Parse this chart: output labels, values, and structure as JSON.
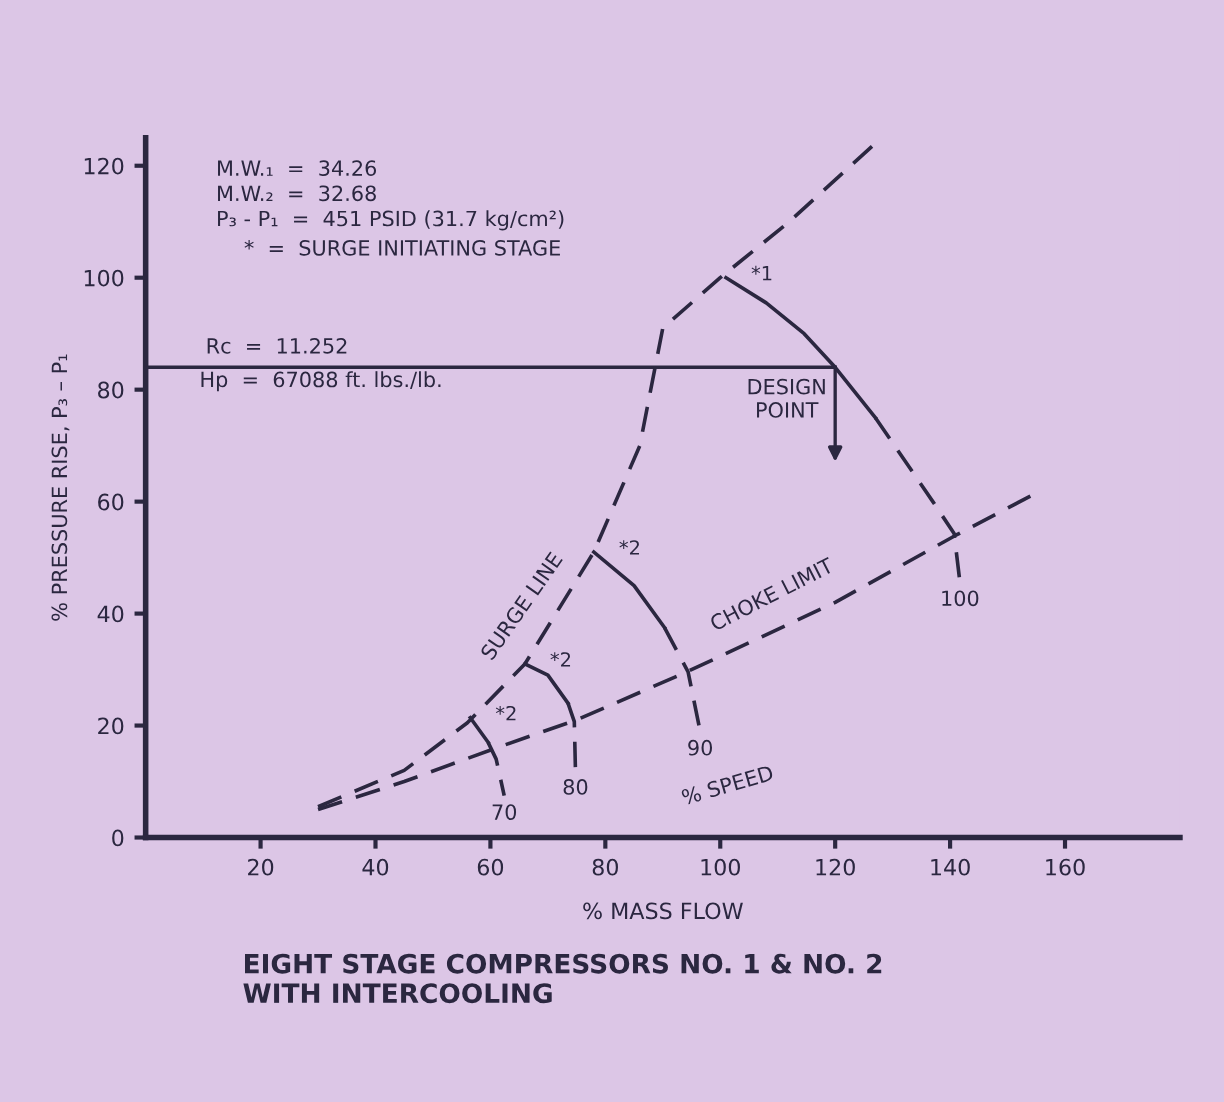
{
  "chart_data": {
    "type": "line",
    "title": "EIGHT STAGE COMPRESSORS NO. 1 & NO. 2\nWITH INTERCOOLING",
    "xlabel": "% MASS FLOW",
    "ylabel": "% PRESSURE RISE, P₃ – P₁",
    "xlim": [
      0,
      180
    ],
    "ylim": [
      0,
      125
    ],
    "xticks": [
      20,
      40,
      60,
      80,
      100,
      120,
      140,
      160
    ],
    "yticks": [
      0,
      20,
      40,
      60,
      80,
      100,
      120
    ],
    "grid": false,
    "marker": "none",
    "series": [
      {
        "color": "#2b2740",
        "line_style": "dashed",
        "x": [
          30,
          45,
          56,
          66,
          78,
          86,
          90,
          100,
          112,
          127
        ],
        "values": [
          5.5,
          12,
          20.5,
          31,
          51,
          70,
          91,
          100,
          110,
          124
        ]
      },
      {
        "color": "#2b2740",
        "line_style": "dashed",
        "x": [
          30,
          45,
          61,
          75,
          94,
          120,
          141,
          154
        ],
        "values": [
          5,
          10,
          16,
          21,
          29.5,
          42,
          54,
          61
        ]
      },
      {
        "color": "#2b2740",
        "line_style": "solid",
        "x": [
          0,
          120
        ],
        "values": [
          84,
          84
        ]
      },
      {
        "color": "#2b2740",
        "line_style": "solid",
        "x": [
          56.5,
          59.6
        ],
        "values": [
          21.4,
          17
        ]
      },
      {
        "color": "#2b2740",
        "line_style": "dashed",
        "x": [
          59.6,
          61,
          62.4
        ],
        "values": [
          17,
          14,
          7.5
        ]
      },
      {
        "color": "#2b2740",
        "line_style": "solid",
        "x": [
          66,
          70,
          73.5
        ],
        "values": [
          31,
          29,
          24
        ]
      },
      {
        "color": "#2b2740",
        "line_style": "dashed",
        "x": [
          73.5,
          74.6,
          74.8
        ],
        "values": [
          24,
          20.7,
          12
        ]
      },
      {
        "color": "#2b2740",
        "line_style": "solid",
        "x": [
          78,
          85,
          90.3
        ],
        "values": [
          51,
          45,
          37.5
        ]
      },
      {
        "color": "#2b2740",
        "line_style": "dashed",
        "x": [
          90.3,
          94.4,
          96.5
        ],
        "values": [
          37.5,
          29.6,
          19
        ]
      },
      {
        "color": "#2b2740",
        "line_style": "solid",
        "x": [
          101,
          108,
          114.6,
          120,
          127
        ],
        "values": [
          100,
          95.5,
          90,
          84,
          75
        ]
      },
      {
        "color": "#2b2740",
        "line_style": "dashed",
        "x": [
          127,
          133,
          137,
          140.7,
          141.7
        ],
        "values": [
          75,
          66,
          60,
          54.3,
          45.7
        ]
      }
    ],
    "annotations": [
      "M.W.₁  =  34.26",
      "M.W.₂  =  32.68",
      "P₃ - P₁  =  451 PSID (31.7 kg/cm²)",
      "*  =  SURGE INITIATING STAGE",
      "Rc  =  11.252",
      "Hp  =  67088 ft. lbs./lb.",
      {
        "text": "SURGE LINE",
        "x": 70,
        "y": 37.7
      },
      {
        "text": "CHOKE LIMIT",
        "x": 110,
        "y": 37.2
      },
      {
        "text": "% SPEED",
        "x": 96.5,
        "y": 19
      },
      {
        "text": "DESIGN\nPOINT",
        "x": 120,
        "y": 84
      },
      {
        "text": "70",
        "x": 62.4,
        "y": 7.5
      },
      {
        "text": "80",
        "x": 74.8,
        "y": 12
      },
      {
        "text": "90",
        "x": 96.5,
        "y": 19
      },
      {
        "text": "100",
        "x": 141.7,
        "y": 45.7
      },
      {
        "text": "*1",
        "x": 101,
        "y": 100
      },
      {
        "text": "*2",
        "x": 78,
        "y": 51
      },
      {
        "text": "*2",
        "x": 66,
        "y": 31
      },
      {
        "text": "*2",
        "x": 56.5,
        "y": 21.4
      }
    ]
  }
}
